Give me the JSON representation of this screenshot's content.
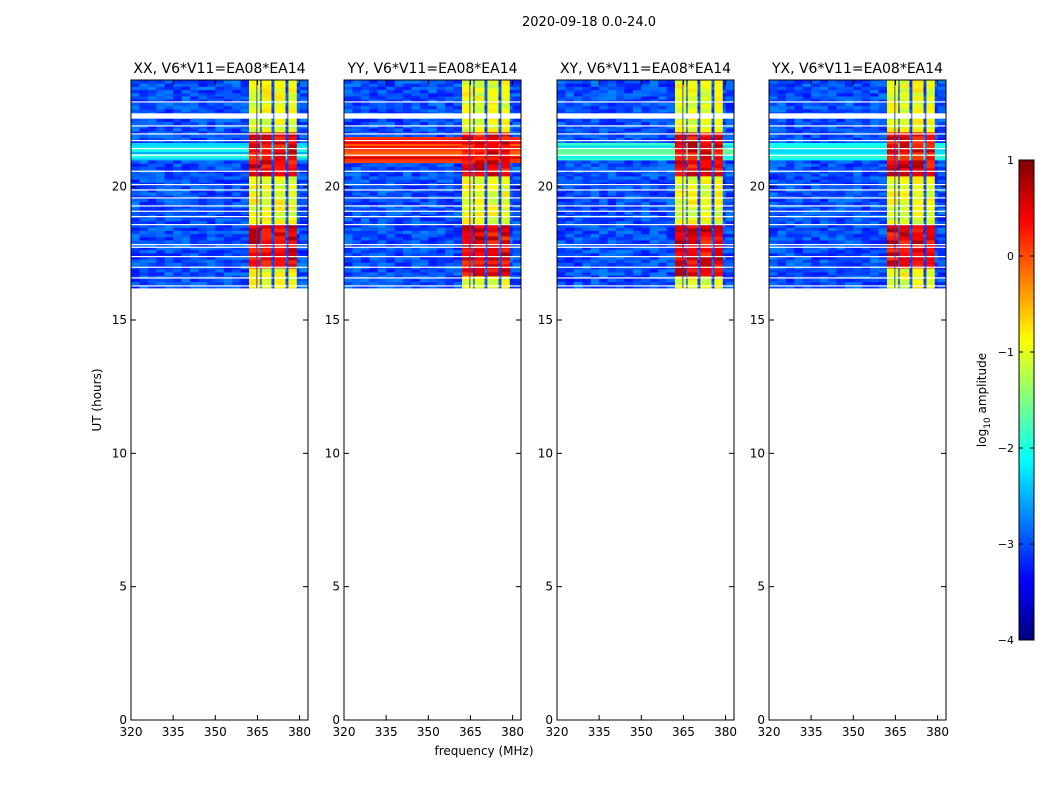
{
  "suptitle": "2020-09-18 0.0-24.0",
  "chart_data": {
    "type": "heatmap",
    "xlabel": "frequency (MHz)",
    "ylabel": "UT (hours)",
    "xlim": [
      320,
      383
    ],
    "ylim": [
      0,
      24
    ],
    "x_ticks": [
      320,
      335,
      350,
      365,
      380
    ],
    "y_ticks": [
      0,
      5,
      10,
      15,
      20
    ],
    "data_time_range_hours": [
      16.2,
      24
    ],
    "panels": [
      {
        "title": "XX, V6*V11=EA08*EA14",
        "strong_bands_ut": [
          [
            16.8,
            18.5
          ],
          [
            20.3,
            22.0
          ]
        ],
        "broadband_rfi_ut": [
          21.0,
          21.6
        ],
        "broadband_rfi_level": -2.2
      },
      {
        "title": "YY, V6*V11=EA08*EA14",
        "strong_bands_ut": [
          [
            16.6,
            18.5
          ],
          [
            20.3,
            22.0
          ]
        ],
        "broadband_rfi_ut": [
          20.9,
          21.8
        ],
        "broadband_rfi_level": 0.2
      },
      {
        "title": "XY, V6*V11=EA08*EA14",
        "strong_bands_ut": [
          [
            16.6,
            18.5
          ],
          [
            20.3,
            22.0
          ]
        ],
        "broadband_rfi_ut": [
          21.0,
          21.6
        ],
        "broadband_rfi_level": -2.0
      },
      {
        "title": "YX, V6*V11=EA08*EA14",
        "strong_bands_ut": [
          [
            16.8,
            18.5
          ],
          [
            20.3,
            22.0
          ]
        ],
        "broadband_rfi_ut": [
          21.0,
          21.6
        ],
        "broadband_rfi_level": -2.2
      }
    ],
    "rfi_channel_blocks_mhz": [
      [
        362,
        366
      ],
      [
        366.5,
        370
      ],
      [
        371,
        375
      ],
      [
        376,
        379
      ]
    ],
    "background_level": -3.0,
    "colorbar": {
      "label_prefix": "log",
      "label_subscript": "10",
      "label_suffix": " amplitude",
      "range": [
        -4,
        1
      ],
      "ticks": [
        -4,
        -3,
        -2,
        -1,
        0,
        1
      ],
      "colormap": "jet",
      "colors": [
        "#00007f",
        "#0000ff",
        "#007fff",
        "#00ffff",
        "#7fff7f",
        "#ffff00",
        "#ff7f00",
        "#ff0000",
        "#7f0000"
      ]
    }
  }
}
